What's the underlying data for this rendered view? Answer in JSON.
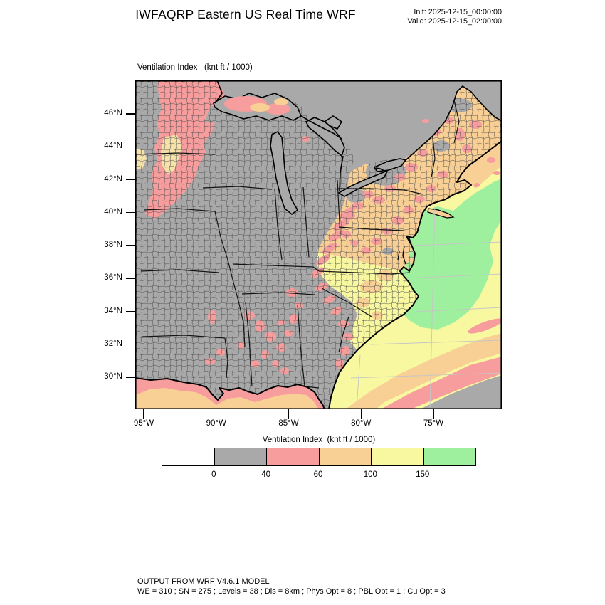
{
  "header": {
    "title": "IWFAQRP Eastern US Real Time WRF",
    "init_label": "Init: 2025-12-15_00:00:00",
    "valid_label": "Valid: 2025-12-15_02:00:00"
  },
  "map": {
    "field_label": "Ventilation Index   (knt ft / 1000)",
    "lat_ticks": [
      "46°N",
      "44°N",
      "42°N",
      "40°N",
      "38°N",
      "36°N",
      "34°N",
      "32°N",
      "30°N"
    ],
    "lon_ticks": [
      "95°W",
      "90°W",
      "85°W",
      "80°W",
      "75°W"
    ]
  },
  "legend": {
    "title": "Ventilation Index  (knt ft / 1000)",
    "tick_labels": [
      "0",
      "40",
      "60",
      "100",
      "150"
    ],
    "bin_colors": [
      "#ffffff",
      "#a9a9a9",
      "#f79d9d",
      "#f8cf94",
      "#f8f8a0",
      "#9ef09e"
    ],
    "bin_ranges": [
      "<0",
      "0-40",
      "40-60",
      "60-100",
      "100-150",
      ">150"
    ]
  },
  "palette": {
    "land_gray": "#a9a9a9",
    "pink": "#f79d9d",
    "tan": "#f8cf94",
    "yellow": "#f8f8a0",
    "green": "#9ef09e",
    "pale_core": "#f6e2ab"
  },
  "footer": {
    "line1": "OUTPUT FROM WRF V4.6.1 MODEL",
    "line2": "WE = 310 ; SN = 275 ; Levels = 38 ; Dis = 8km ; Phys Opt = 8 ; PBL Opt = 1 ; Cu Opt = 3"
  }
}
